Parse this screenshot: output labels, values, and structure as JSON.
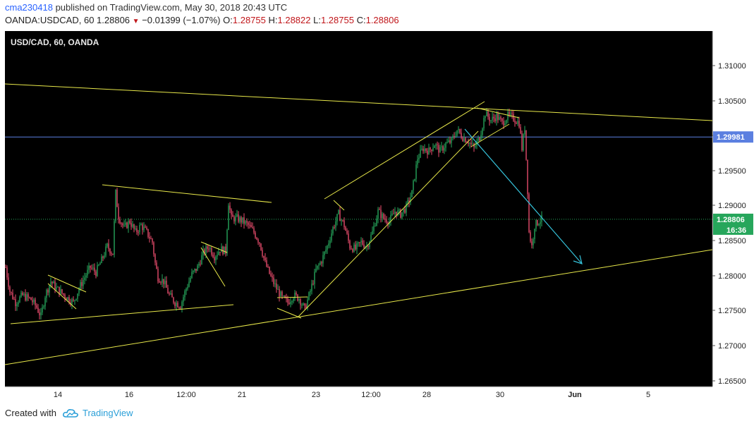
{
  "header": {
    "user": "cma230418",
    "published_text": "published on TradingView.com, May 30, 2018 20:43 UTC",
    "symbol_line": "OANDA:USDCAD, 60",
    "last_price": "1.28806",
    "change": "−0.01399 (−1.07%)",
    "o_label": "O:",
    "o_value": "1.28755",
    "h_label": "H:",
    "h_value": "1.28822",
    "l_label": "L:",
    "l_value": "1.28755",
    "c_label": "C:",
    "c_value": "1.28806"
  },
  "chart_data": {
    "type": "candlestick",
    "title": "USD/CAD, 60, OANDA",
    "x_tick_labels": [
      "14",
      "16",
      "12:00",
      "21",
      "23",
      "12:00",
      "28",
      "30",
      "Jun",
      "5"
    ],
    "y_tick_labels": [
      "1.31000",
      "1.30500",
      "1.30000",
      "1.29500",
      "1.29000",
      "1.28500",
      "1.28000",
      "1.27500",
      "1.27000",
      "1.26500"
    ],
    "y_ticks": [
      1.31,
      1.305,
      1.3,
      1.295,
      1.29,
      1.285,
      1.28,
      1.275,
      1.27,
      1.265
    ],
    "ylim": [
      1.2635,
      1.3155
    ],
    "horizontal_line": {
      "value": 1.29981,
      "label": "1.29981",
      "color": "#5b7fe0"
    },
    "last_price": {
      "value": 1.28806,
      "label": "1.28806",
      "countdown": "16:36",
      "color": "#26a65b"
    },
    "up_color": "#26a65b",
    "down_color": "#e74c6c",
    "background": "#000000",
    "drawing_color": "#e8e84a",
    "arrow_color": "#36c4dc",
    "price_path": [
      [
        0,
        1.2812
      ],
      [
        3,
        1.2778
      ],
      [
        7,
        1.2762
      ],
      [
        12,
        1.2772
      ],
      [
        18,
        1.2766
      ],
      [
        22,
        1.2755
      ],
      [
        25,
        1.2742
      ],
      [
        28,
        1.2772
      ],
      [
        32,
        1.2792
      ],
      [
        36,
        1.2782
      ],
      [
        40,
        1.2775
      ],
      [
        44,
        1.2768
      ],
      [
        48,
        1.2762
      ],
      [
        52,
        1.2782
      ],
      [
        56,
        1.2798
      ],
      [
        60,
        1.2812
      ],
      [
        64,
        1.2805
      ],
      [
        68,
        1.2822
      ],
      [
        72,
        1.2842
      ],
      [
        76,
        1.2832
      ],
      [
        78,
        1.2918
      ],
      [
        80,
        1.2885
      ],
      [
        84,
        1.2868
      ],
      [
        88,
        1.2878
      ],
      [
        92,
        1.2862
      ],
      [
        96,
        1.2872
      ],
      [
        100,
        1.2862
      ],
      [
        104,
        1.2848
      ],
      [
        106,
        1.2818
      ],
      [
        108,
        1.2798
      ],
      [
        112,
        1.2792
      ],
      [
        116,
        1.2772
      ],
      [
        120,
        1.2762
      ],
      [
        124,
        1.2758
      ],
      [
        128,
        1.2782
      ],
      [
        132,
        1.2802
      ],
      [
        136,
        1.2812
      ],
      [
        140,
        1.2832
      ],
      [
        144,
        1.2842
      ],
      [
        148,
        1.2828
      ],
      [
        152,
        1.2838
      ],
      [
        156,
        1.2835
      ],
      [
        158,
        1.2905
      ],
      [
        160,
        1.2882
      ],
      [
        164,
        1.2882
      ],
      [
        168,
        1.2878
      ],
      [
        172,
        1.2872
      ],
      [
        176,
        1.2862
      ],
      [
        180,
        1.2848
      ],
      [
        184,
        1.2818
      ],
      [
        188,
        1.2798
      ],
      [
        192,
        1.2782
      ],
      [
        196,
        1.2768
      ],
      [
        200,
        1.2762
      ],
      [
        204,
        1.2772
      ],
      [
        208,
        1.2768
      ],
      [
        212,
        1.2752
      ],
      [
        216,
        1.2778
      ],
      [
        220,
        1.2808
      ],
      [
        224,
        1.2822
      ],
      [
        228,
        1.2842
      ],
      [
        232,
        1.2868
      ],
      [
        236,
        1.2888
      ],
      [
        240,
        1.2872
      ],
      [
        244,
        1.2842
      ],
      [
        248,
        1.2838
      ],
      [
        252,
        1.2848
      ],
      [
        256,
        1.2842
      ],
      [
        260,
        1.2862
      ],
      [
        264,
        1.2892
      ],
      [
        268,
        1.2882
      ],
      [
        272,
        1.2878
      ],
      [
        276,
        1.2892
      ],
      [
        280,
        1.2888
      ],
      [
        284,
        1.2898
      ],
      [
        288,
        1.2918
      ],
      [
        292,
        1.2968
      ],
      [
        296,
        1.2982
      ],
      [
        300,
        1.2978
      ],
      [
        304,
        1.2988
      ],
      [
        308,
        1.2978
      ],
      [
        312,
        1.2988
      ],
      [
        316,
        1.2992
      ],
      [
        320,
        1.3008
      ],
      [
        324,
        1.2998
      ],
      [
        328,
        1.2992
      ],
      [
        332,
        1.2982
      ],
      [
        336,
        1.2998
      ],
      [
        340,
        1.3032
      ],
      [
        344,
        1.3022
      ],
      [
        348,
        1.3028
      ],
      [
        352,
        1.3018
      ],
      [
        356,
        1.3028
      ],
      [
        360,
        1.3025
      ],
      [
        364,
        1.3018
      ],
      [
        366,
        1.2982
      ],
      [
        368,
        1.3012
      ],
      [
        370,
        1.2922
      ],
      [
        371,
        1.2862
      ],
      [
        373,
        1.2842
      ],
      [
        375,
        1.2872
      ],
      [
        378,
        1.2878
      ],
      [
        380,
        1.2881
      ]
    ]
  },
  "footer": {
    "created_with": "Created with",
    "brand": "TradingView"
  }
}
